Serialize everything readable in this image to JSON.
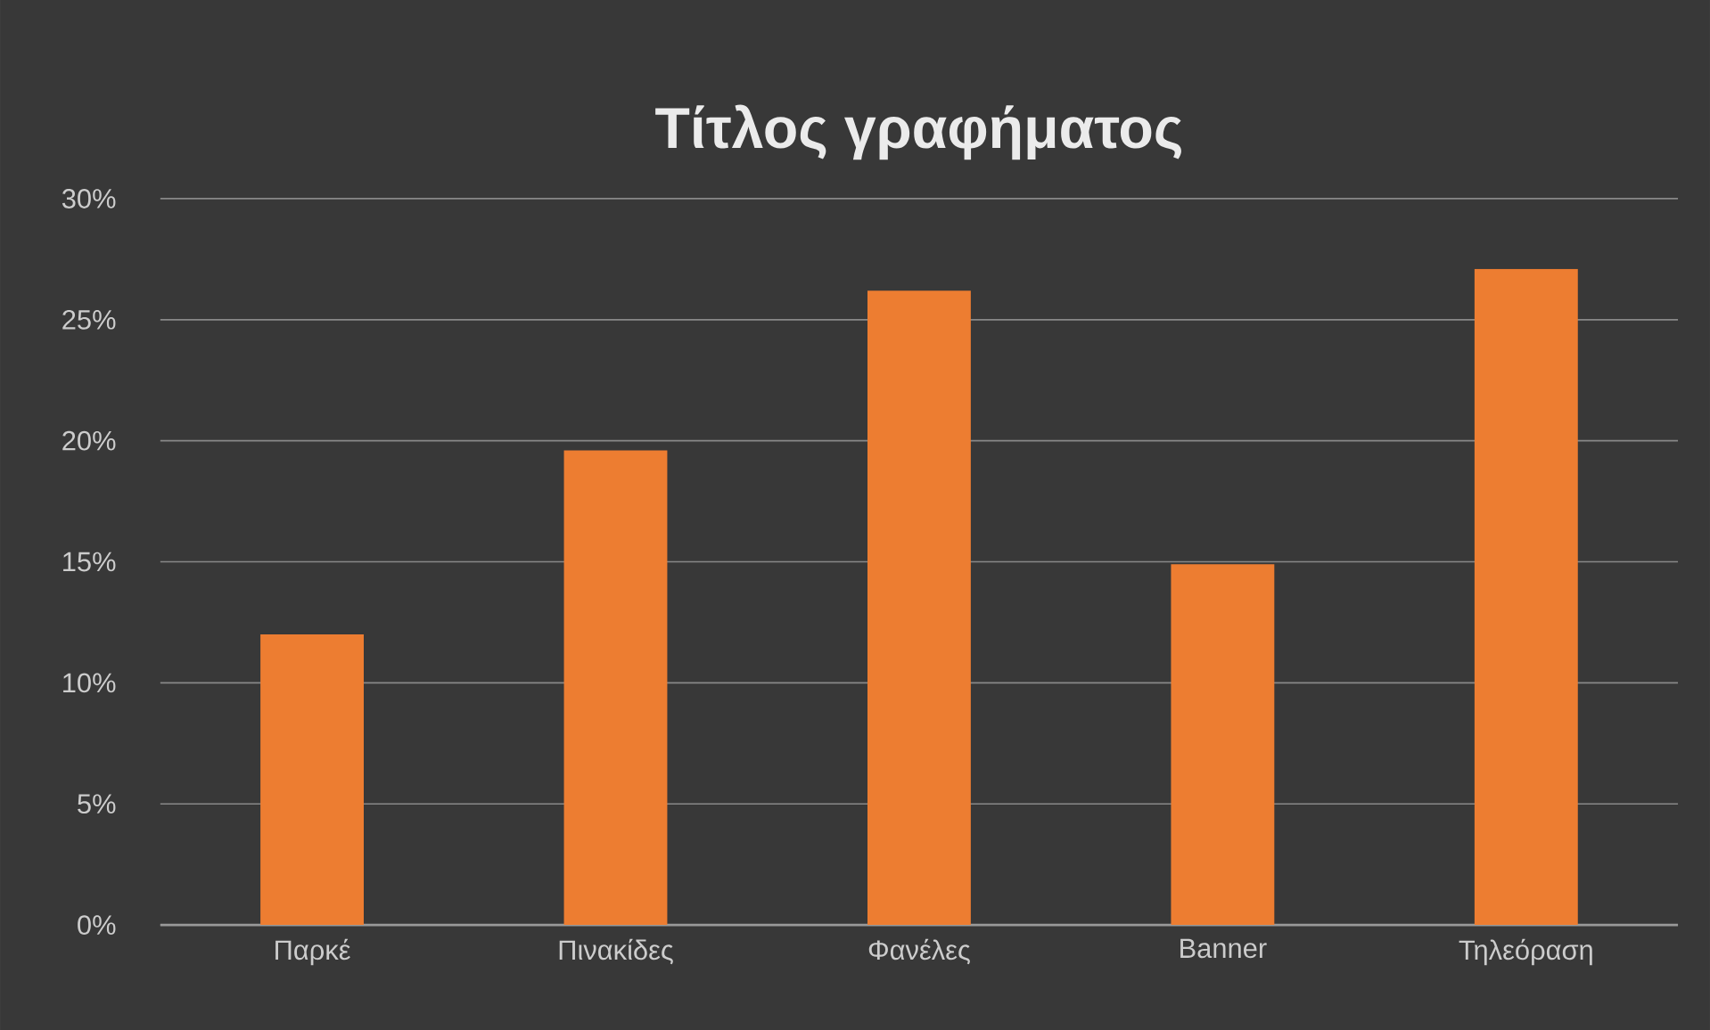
{
  "chart_data": {
    "type": "bar",
    "title": "Τίτλος γραφήματος",
    "categories": [
      "Παρκέ",
      "Πινακίδες",
      "Φανέλες",
      "Banner",
      "Τηλεόραση"
    ],
    "values": [
      12.0,
      19.6,
      26.2,
      14.9,
      27.1
    ],
    "color": "#ed7d31",
    "ylim": [
      0,
      30
    ],
    "yticks": [
      {
        "value": 0,
        "label": "0%"
      },
      {
        "value": 5,
        "label": "5%"
      },
      {
        "value": 10,
        "label": "10%"
      },
      {
        "value": 15,
        "label": "15%"
      },
      {
        "value": 20,
        "label": "20%"
      },
      {
        "value": 25,
        "label": "25%"
      },
      {
        "value": 30,
        "label": "30%"
      }
    ],
    "grid": "y"
  }
}
